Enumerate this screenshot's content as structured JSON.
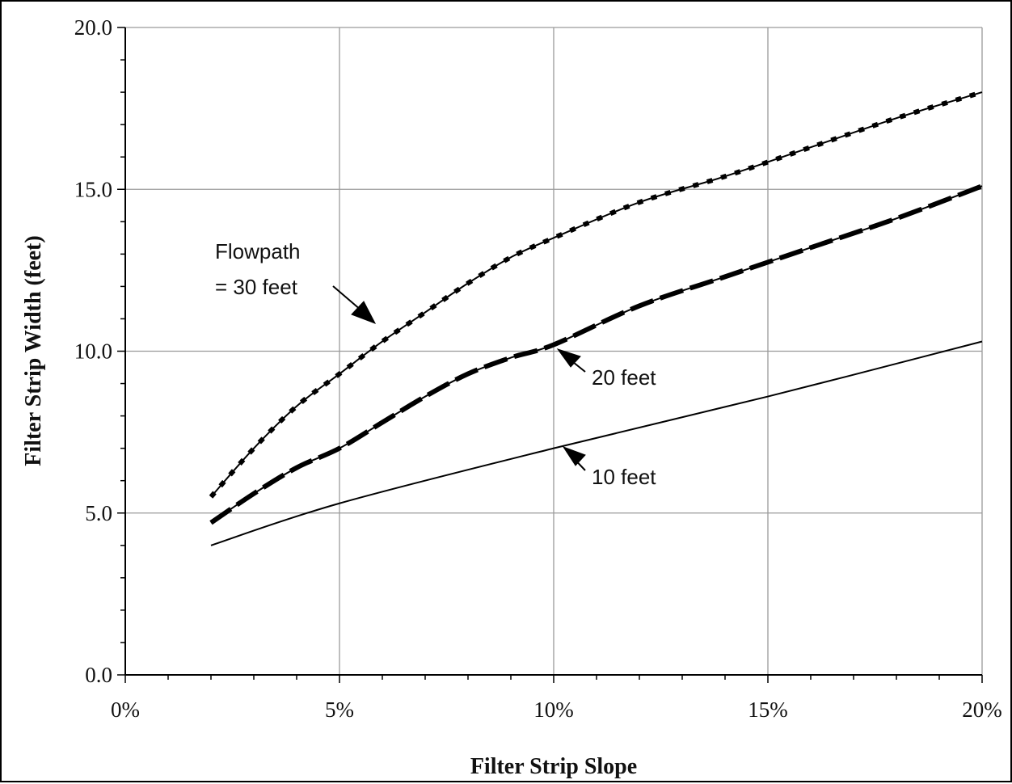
{
  "chart_data": {
    "type": "line",
    "title": "",
    "xlabel": "Filter Strip Slope",
    "ylabel": "Filter Strip Width (feet)",
    "xlim": [
      0,
      20
    ],
    "ylim": [
      0,
      20
    ],
    "x_unit": "%",
    "x_ticks": [
      0,
      5,
      10,
      15,
      20
    ],
    "x_tick_labels": [
      "0%",
      "5%",
      "10%",
      "15%",
      "20%"
    ],
    "y_ticks": [
      0,
      5,
      10,
      15,
      20
    ],
    "y_tick_labels": [
      "0.0",
      "5.0",
      "10.0",
      "15.0",
      "20.0"
    ],
    "grid": true,
    "legend": "none",
    "series": [
      {
        "name": "Flowpath = 30 feet",
        "style": "solid-with-dotted-overlay",
        "x": [
          2,
          3,
          4,
          5,
          6,
          7,
          8,
          9,
          10,
          12,
          14,
          16,
          18,
          20
        ],
        "values": [
          5.5,
          7.0,
          8.3,
          9.3,
          10.3,
          11.2,
          12.1,
          12.9,
          13.5,
          14.6,
          15.4,
          16.3,
          17.2,
          18.0
        ]
      },
      {
        "name": "20 feet",
        "style": "solid-with-dashed-overlay",
        "x": [
          2,
          3,
          4,
          5,
          6,
          7,
          8,
          9,
          10,
          12,
          14,
          16,
          18,
          20
        ],
        "values": [
          4.7,
          5.6,
          6.4,
          7.0,
          7.8,
          8.6,
          9.3,
          9.8,
          10.2,
          11.4,
          12.3,
          13.2,
          14.1,
          15.1
        ]
      },
      {
        "name": "10 feet",
        "style": "solid",
        "x": [
          2,
          5,
          10,
          15,
          20
        ],
        "values": [
          4.0,
          5.3,
          7.0,
          8.6,
          10.3
        ]
      }
    ],
    "annotations": [
      {
        "line1": "Flowpath",
        "line2": "=  30 feet"
      },
      {
        "text": "20 feet"
      },
      {
        "text": "10 feet"
      }
    ]
  }
}
